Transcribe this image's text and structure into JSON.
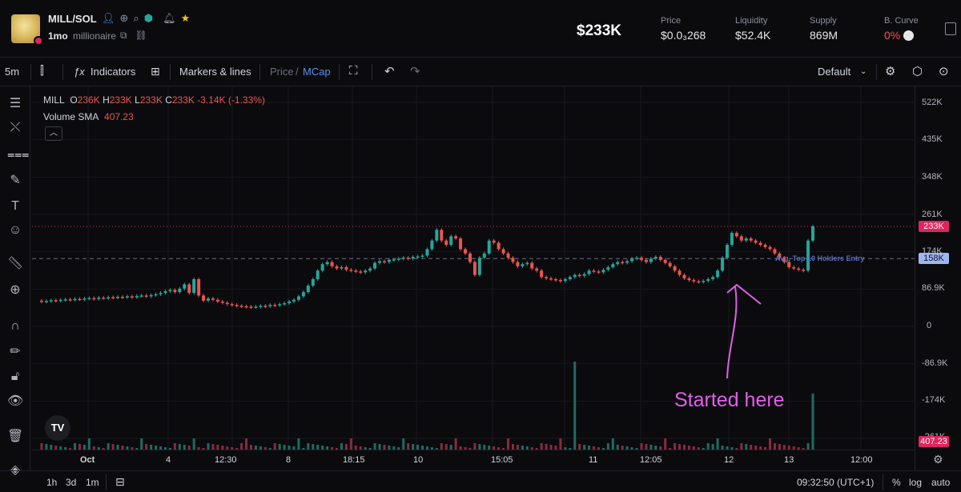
{
  "header": {
    "pair": "MILL/SOL",
    "timeframe": "1mo",
    "nickname": "millionaire",
    "market_cap": "$233K",
    "stats": [
      {
        "label": "Price",
        "value": "$0.0₃268",
        "status": "normal"
      },
      {
        "label": "Liquidity",
        "value": "$52.4K",
        "status": "normal"
      },
      {
        "label": "Supply",
        "value": "869M",
        "status": "normal"
      },
      {
        "label": "B. Curve",
        "value": "0%",
        "status": "red"
      }
    ]
  },
  "toolbar": {
    "interval": "5m",
    "indicators": "Indicators",
    "markers": "Markers & lines",
    "price": "Price",
    "slash": "/",
    "mcap": "MCap",
    "layout": "Default"
  },
  "legend": {
    "symbol": "MILL",
    "o_label": "O",
    "o": "236K",
    "h_label": "H",
    "h": "233K",
    "l_label": "L",
    "l": "233K",
    "c_label": "C",
    "c": "233K",
    "change": "-3.14K (-1.33%)",
    "volume_label": "Volume SMA",
    "volume_value": "407.23"
  },
  "annotations": {
    "avg_entry": "Avg. Top 10 Holders Entry",
    "note": "Started here"
  },
  "chart_data": {
    "type": "candlestick",
    "y_axis_labels": [
      "522K",
      "435K",
      "348K",
      "261K",
      "174K",
      "86.9K",
      "0",
      "-86.9K",
      "-174K",
      "-261K"
    ],
    "x_axis_labels": [
      "Oct",
      "4",
      "12:30",
      "8",
      "18:15",
      "10",
      "15:05",
      "11",
      "12:05",
      "12",
      "13",
      "12:00"
    ],
    "current_price_tag": "233K",
    "avg_entry_tag": "158K",
    "volume_tag": "407.23",
    "ylim": [
      -261,
      522
    ],
    "close_series": [
      60,
      58,
      59,
      61,
      60,
      62,
      63,
      62,
      64,
      63,
      65,
      66,
      64,
      67,
      66,
      68,
      67,
      69,
      68,
      70,
      68,
      71,
      72,
      70,
      73,
      75,
      78,
      82,
      85,
      80,
      88,
      98,
      78,
      110,
      72,
      60,
      65,
      62,
      58,
      55,
      52,
      50,
      48,
      47,
      46,
      45,
      46,
      48,
      47,
      50,
      49,
      52,
      54,
      58,
      62,
      70,
      80,
      95,
      110,
      130,
      145,
      150,
      140,
      135,
      138,
      132,
      130,
      128,
      126,
      130,
      135,
      148,
      152,
      150,
      155,
      156,
      158,
      160,
      158,
      162,
      163,
      165,
      180,
      200,
      225,
      200,
      190,
      210,
      205,
      180,
      170,
      150,
      120,
      160,
      170,
      200,
      195,
      180,
      170,
      160,
      150,
      140,
      145,
      148,
      135,
      130,
      115,
      112,
      110,
      108,
      106,
      110,
      115,
      120,
      118,
      122,
      130,
      128,
      126,
      132,
      138,
      145,
      150,
      148,
      152,
      158,
      160,
      155,
      150,
      158,
      162,
      155,
      148,
      140,
      130,
      120,
      112,
      108,
      105,
      104,
      106,
      110,
      115,
      130,
      160,
      190,
      218,
      210,
      200,
      205,
      200,
      195,
      190,
      185,
      180,
      170,
      160,
      150,
      138,
      135,
      132,
      130,
      200,
      233
    ]
  },
  "bottom": {
    "ranges": [
      "1h",
      "3d",
      "1m"
    ],
    "clock": "09:32:50 (UTC+1)",
    "percent": "%",
    "log": "log",
    "auto": "auto"
  }
}
